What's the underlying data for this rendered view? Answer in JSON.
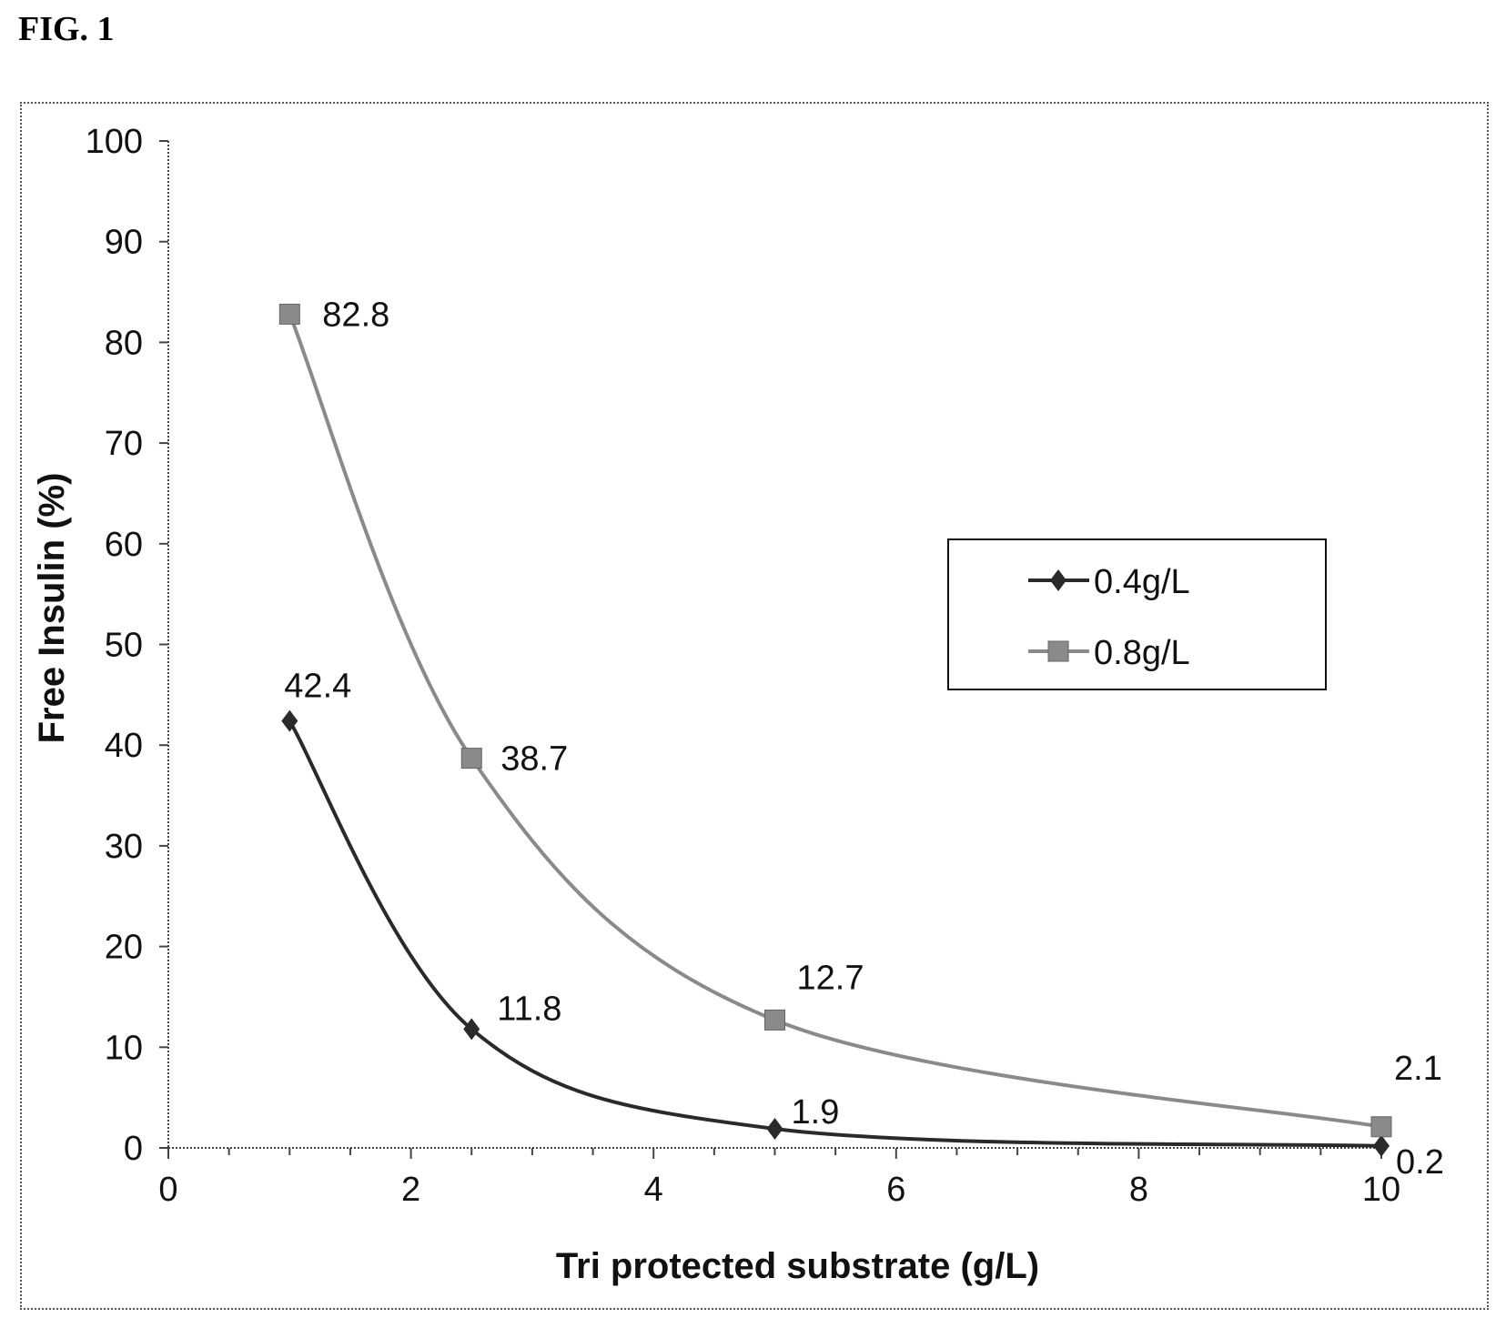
{
  "figure_label": "FIG. 1",
  "chart_data": {
    "type": "line",
    "title": "",
    "xlabel": "Tri protected substrate (g/L)",
    "ylabel": "Free Insulin (%)",
    "xlim": [
      0,
      10
    ],
    "ylim": [
      0,
      100
    ],
    "xticks": [
      0,
      2,
      4,
      6,
      8,
      10
    ],
    "yticks": [
      0,
      10,
      20,
      30,
      40,
      50,
      60,
      70,
      80,
      90,
      100
    ],
    "grid": false,
    "legend_position": "right",
    "series": [
      {
        "name": "0.4g/L",
        "color": "#2a2a2a",
        "marker": "diamond",
        "points": [
          {
            "x": 1,
            "y": 42.4,
            "label": "42.4"
          },
          {
            "x": 2.5,
            "y": 11.8,
            "label": "11.8"
          },
          {
            "x": 5,
            "y": 1.9,
            "label": "1.9"
          },
          {
            "x": 10,
            "y": 0.2,
            "label": "0.2"
          }
        ]
      },
      {
        "name": "0.8g/L",
        "color": "#8a8a8a",
        "marker": "square",
        "points": [
          {
            "x": 1,
            "y": 82.8,
            "label": "82.8"
          },
          {
            "x": 2.5,
            "y": 38.7,
            "label": "38.7"
          },
          {
            "x": 5,
            "y": 12.7,
            "label": "12.7"
          },
          {
            "x": 10,
            "y": 2.1,
            "label": "2.1"
          }
        ]
      }
    ]
  }
}
